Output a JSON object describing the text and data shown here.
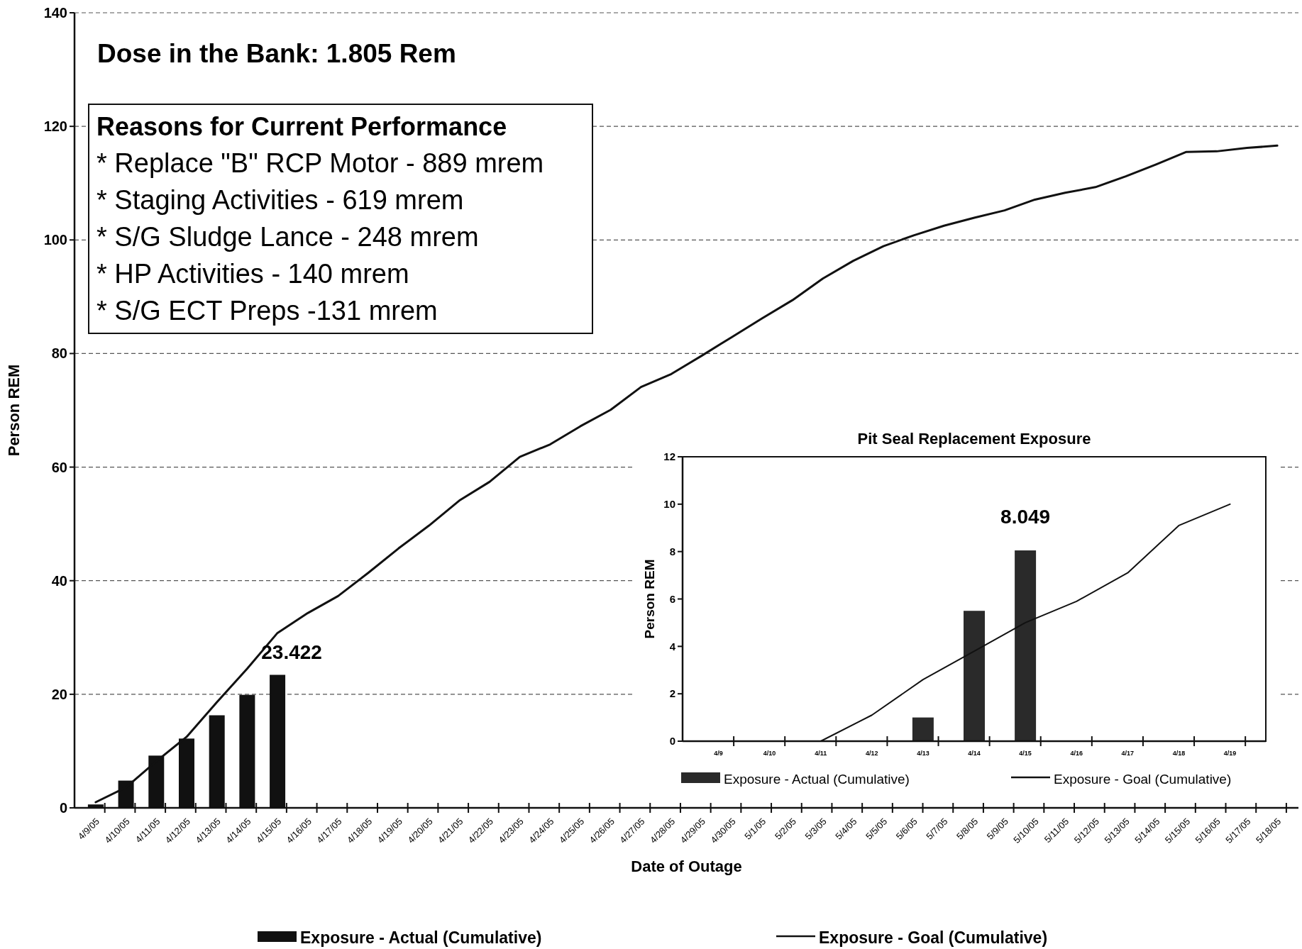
{
  "chart_data": [
    {
      "type": "bar",
      "xlabel": "Date of Outage",
      "ylabel": "Person REM",
      "categories": [
        "4/9/05",
        "4/10/05",
        "4/11/05",
        "4/12/05",
        "4/13/05",
        "4/14/05",
        "4/15/05",
        "4/16/05",
        "4/17/05",
        "4/18/05",
        "4/19/05",
        "4/20/05",
        "4/21/05",
        "4/22/05",
        "4/23/05",
        "4/24/05",
        "4/25/05",
        "4/26/05",
        "4/27/05",
        "4/28/05",
        "4/29/05",
        "4/30/05",
        "5/1/05",
        "5/2/05",
        "5/3/05",
        "5/4/05",
        "5/5/05",
        "5/6/05",
        "5/7/05",
        "5/8/05",
        "5/9/05",
        "5/10/05",
        "5/11/05",
        "5/12/05",
        "5/13/05",
        "5/14/05",
        "5/15/05",
        "5/16/05",
        "5/17/05",
        "5/18/05"
      ],
      "series": [
        {
          "name": "Exposure - Actual (Cumulative)",
          "color": "#111111",
          "values": [
            0.6,
            4.8,
            9.2,
            12.2,
            16.3,
            19.9,
            23.422,
            null,
            null,
            null,
            null,
            null,
            null,
            null,
            null,
            null,
            null,
            null,
            null,
            null,
            null,
            null,
            null,
            null,
            null,
            null,
            null,
            null,
            null,
            null,
            null,
            null,
            null,
            null,
            null,
            null,
            null,
            null,
            null,
            null
          ],
          "value_labels": [
            null,
            null,
            null,
            null,
            null,
            null,
            "23.422",
            null,
            null,
            null,
            null,
            null,
            null,
            null,
            null,
            null,
            null,
            null,
            null,
            null,
            null,
            null,
            null,
            null,
            null,
            null,
            null,
            null,
            null,
            null,
            null,
            null,
            null,
            null,
            null,
            null,
            null,
            null,
            null,
            null
          ]
        },
        {
          "name": "Exposure - Goal (Cumulative)",
          "type": "line",
          "color": "#111111",
          "values": [
            1.0,
            3.6,
            8.2,
            12.5,
            18.6,
            24.5,
            30.8,
            34.3,
            37.3,
            41.4,
            45.7,
            49.7,
            54.1,
            57.4,
            61.8,
            64,
            67.2,
            70.1,
            74.1,
            76.4,
            79.6,
            82.9,
            86.2,
            89.4,
            93.2,
            96.3,
            98.9,
            100.8,
            102.5,
            103.9,
            105.2,
            107.1,
            108.3,
            109.3,
            111.2,
            113.3,
            115.5,
            115.6,
            116.2,
            116.6
          ]
        }
      ],
      "ylim": [
        0,
        140
      ],
      "yticks": [
        0,
        20,
        40,
        60,
        80,
        100,
        120,
        140
      ],
      "grid": "y",
      "legend": "bottom",
      "annotations": [
        "Dose in the Bank: 1.805 Rem",
        "Reasons for Current Performance",
        "* Replace \"B\" RCP Motor - 889 mrem",
        "* Staging Activities - 619 mrem",
        "* S/G Sludge Lance - 248 mrem",
        "* HP Activities - 140 mrem",
        "* S/G ECT Preps -131 mrem"
      ]
    },
    {
      "type": "bar",
      "title": "Pit Seal Replacement Exposure",
      "ylabel": "Person REM",
      "categories": [
        "4/9",
        "4/10",
        "4/11",
        "4/12",
        "4/13",
        "4/14",
        "4/15",
        "4/16",
        "4/17",
        "4/18",
        "4/19"
      ],
      "series": [
        {
          "name": "Exposure - Actual (Cumulative)",
          "color": "#2a2a2a",
          "values": [
            0,
            0,
            0,
            0,
            1.0,
            5.5,
            8.049,
            null,
            null,
            null,
            null
          ],
          "value_labels": [
            null,
            null,
            null,
            null,
            null,
            null,
            "8.049",
            null,
            null,
            null,
            null
          ]
        },
        {
          "name": "Exposure - Goal (Cumulative)",
          "type": "line",
          "color": "#111111",
          "values": [
            0,
            0,
            0,
            1.1,
            2.6,
            3.8,
            5.0,
            5.9,
            7.1,
            9.1,
            10.0
          ]
        }
      ],
      "ylim": [
        0,
        12
      ],
      "yticks": [
        0,
        2,
        4,
        6,
        8,
        10,
        12
      ],
      "legend": "bottom"
    }
  ]
}
